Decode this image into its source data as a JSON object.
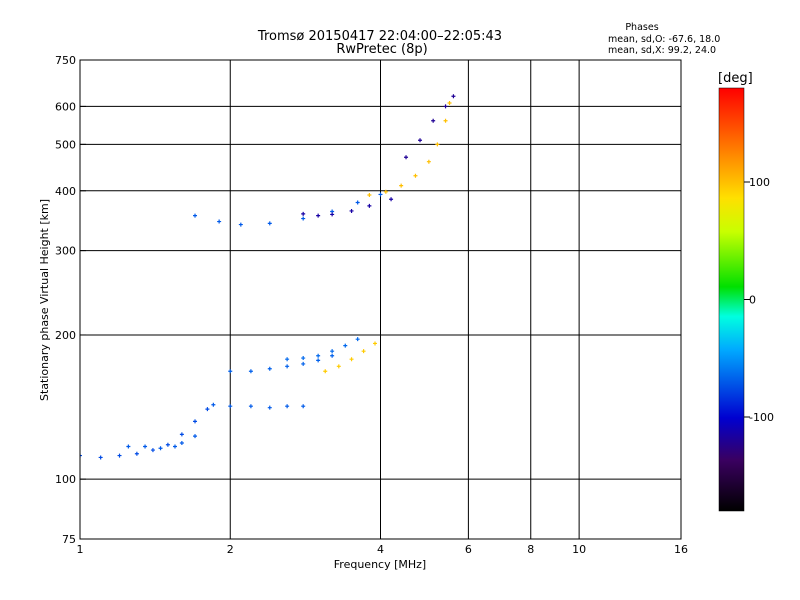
{
  "chart_data": {
    "type": "scatter",
    "title": "Tromsø 20150417 22:04:00–22:05:43",
    "subtitle": "RwPretec (8p)",
    "phase_header": "Phases",
    "phase_stats": [
      "mean, sd,O: -67.6, 18.0",
      "mean, sd,X: 99.2, 24.0"
    ],
    "xlabel": "Frequency [MHz]",
    "ylabel": "Stationary phase Virtual Height [km]",
    "x_scale": "log",
    "y_scale": "log",
    "xlim": [
      1,
      16
    ],
    "ylim": [
      75,
      750
    ],
    "x_ticks": [
      1,
      2,
      4,
      6,
      8,
      10,
      16
    ],
    "y_ticks": [
      75,
      100,
      200,
      300,
      400,
      500,
      600,
      750
    ],
    "grid_x": [
      2,
      4,
      6,
      8,
      10
    ],
    "grid_y": [
      100,
      200,
      300,
      400,
      500,
      600
    ],
    "colorbar": {
      "label": "[deg]",
      "range": [
        -180,
        180
      ],
      "ticks": [
        -100,
        0,
        100
      ]
    },
    "grid": true,
    "legend": "none",
    "traces": [
      {
        "name": "",
        "phase": -75,
        "points": [
          [
            1.0,
            112
          ],
          [
            1.1,
            111
          ],
          [
            1.2,
            112
          ],
          [
            1.3,
            113
          ],
          [
            1.4,
            115
          ],
          [
            1.5,
            118
          ],
          [
            1.6,
            124
          ],
          [
            1.7,
            132
          ],
          [
            1.8,
            140
          ]
        ]
      },
      {
        "name": "",
        "phase": -70,
        "points": [
          [
            1.25,
            117
          ],
          [
            1.35,
            117
          ],
          [
            1.45,
            116
          ],
          [
            1.55,
            117
          ],
          [
            1.6,
            119
          ],
          [
            1.7,
            123
          ]
        ]
      },
      {
        "name": "",
        "phase": -70,
        "points": [
          [
            1.85,
            143
          ],
          [
            2.0,
            142
          ],
          [
            2.2,
            142
          ],
          [
            2.4,
            141
          ],
          [
            2.6,
            142
          ],
          [
            2.8,
            142
          ]
        ]
      },
      {
        "name": "",
        "phase": -68,
        "points": [
          [
            2.0,
            168
          ],
          [
            2.2,
            168
          ],
          [
            2.4,
            170
          ],
          [
            2.6,
            172
          ],
          [
            2.8,
            174
          ],
          [
            3.0,
            177
          ],
          [
            3.2,
            181
          ]
        ]
      },
      {
        "name": "",
        "phase": -65,
        "points": [
          [
            2.6,
            178
          ],
          [
            2.8,
            179
          ],
          [
            3.0,
            181
          ],
          [
            3.2,
            185
          ],
          [
            3.4,
            190
          ],
          [
            3.6,
            196
          ]
        ]
      },
      {
        "name": "",
        "phase": 95,
        "points": [
          [
            3.1,
            168
          ],
          [
            3.3,
            172
          ],
          [
            3.5,
            178
          ],
          [
            3.7,
            185
          ],
          [
            3.9,
            192
          ]
        ]
      },
      {
        "name": "",
        "phase": -70,
        "points": [
          [
            1.7,
            355
          ],
          [
            1.9,
            345
          ],
          [
            2.1,
            340
          ],
          [
            2.4,
            342
          ],
          [
            2.8,
            350
          ],
          [
            3.2,
            362
          ],
          [
            3.6,
            378
          ],
          [
            4.0,
            393
          ]
        ]
      },
      {
        "name": "",
        "phase": -115,
        "points": [
          [
            2.8,
            358
          ],
          [
            3.0,
            355
          ],
          [
            3.2,
            357
          ],
          [
            3.5,
            363
          ],
          [
            3.8,
            372
          ],
          [
            4.2,
            384
          ]
        ]
      },
      {
        "name": "",
        "phase": 100,
        "points": [
          [
            3.8,
            392
          ],
          [
            4.1,
            398
          ],
          [
            4.4,
            410
          ],
          [
            4.7,
            430
          ],
          [
            5.0,
            460
          ],
          [
            5.2,
            500
          ],
          [
            5.4,
            560
          ],
          [
            5.5,
            610
          ]
        ]
      },
      {
        "name": "",
        "phase": -120,
        "points": [
          [
            4.5,
            470
          ],
          [
            4.8,
            510
          ],
          [
            5.1,
            560
          ],
          [
            5.4,
            600
          ],
          [
            5.6,
            630
          ]
        ]
      }
    ]
  }
}
